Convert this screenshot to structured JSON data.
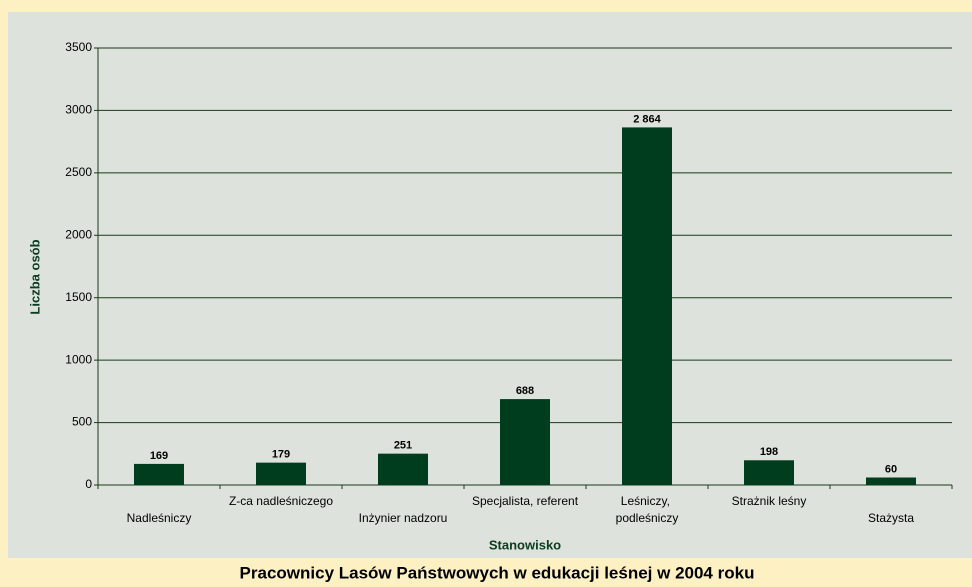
{
  "chart_data": {
    "type": "bar",
    "title": "Pracownicy Lasów Państwowych w edukacji leśnej w 2004 roku",
    "x_label": "Stanowisko",
    "y_label": "Liczba osób",
    "categories": [
      "Nadleśniczy",
      "Z-ca nadleśniczego",
      "Inżynier nadzoru",
      "Specjalista, referent",
      "Leśniczy, podleśniczy",
      "Strażnik leśny",
      "Stażysta"
    ],
    "values": [
      169,
      179,
      251,
      688,
      2864,
      198,
      60
    ],
    "value_labels": [
      "169",
      "179",
      "251",
      "688",
      "2 864",
      "198",
      "60"
    ],
    "color": "#003c1e",
    "ylim": [
      0,
      3500
    ],
    "yticks": [
      0,
      500,
      1000,
      1500,
      2000,
      2500,
      3000,
      3500
    ],
    "grid": true
  }
}
